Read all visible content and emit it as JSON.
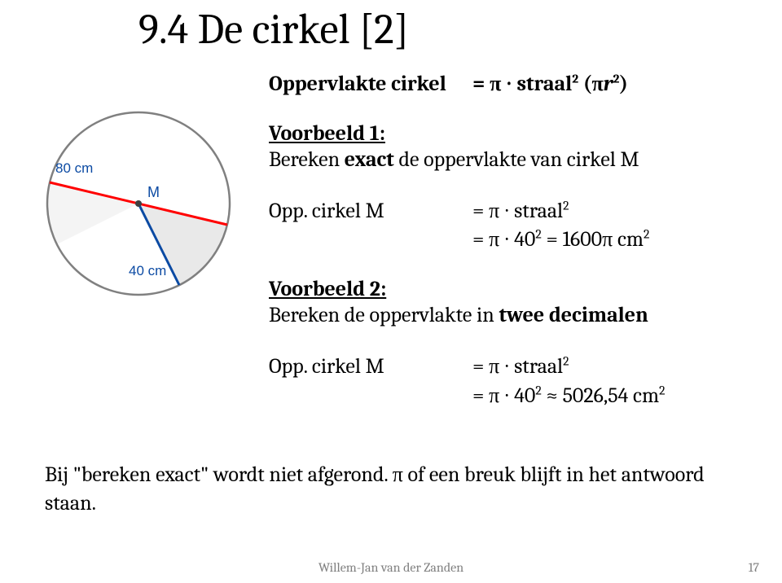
{
  "title": "9.4 De cirkel [2]",
  "diagram": {
    "center_label": "M",
    "radius_label": "40 cm",
    "diameter_label": "80 cm",
    "colors": {
      "circle_stroke": "#808080",
      "diameter": "#ff0000",
      "radius": "#0b4aa3",
      "center_fill": "#404040",
      "text": "#0b4aa3"
    },
    "stroke_widths": {
      "circle": 2.5,
      "diameter": 3,
      "radius": 3
    }
  },
  "lines": {
    "opp_cirkel": {
      "label": "Oppervlakte cirkel",
      "value_html": "= π ∙ straal<sup>2</sup> (π<i>r</i><sup>2</sup>)"
    },
    "vb1": "Voorbeeld 1:",
    "vb1_text_html": "Bereken <b>exact</b> de oppervlakte van cirkel M",
    "oppM1": {
      "label": "Opp. cirkel M",
      "value_html": "= π ∙ straal<sup>2</sup><br>= π ∙ 40<sup>2</sup> = 1600π cm<sup>2</sup>"
    },
    "vb2": "Voorbeeld 2:",
    "vb2_text_html": "Bereken de oppervlakte in <b>twee decimalen</b>",
    "oppM2": {
      "label": "Opp. cirkel M",
      "value_html": "= π ∙ straal<sup>2</sup><br>= π ∙ 40<sup>2</sup> ≈ 5026,54 cm<sup>2</sup>"
    }
  },
  "bottom_note": "Bij \"bereken exact\" wordt niet afgerond. π of een breuk blijft in het antwoord staan.",
  "footer": {
    "author": "Willem-Jan van der Zanden",
    "page": "17"
  }
}
